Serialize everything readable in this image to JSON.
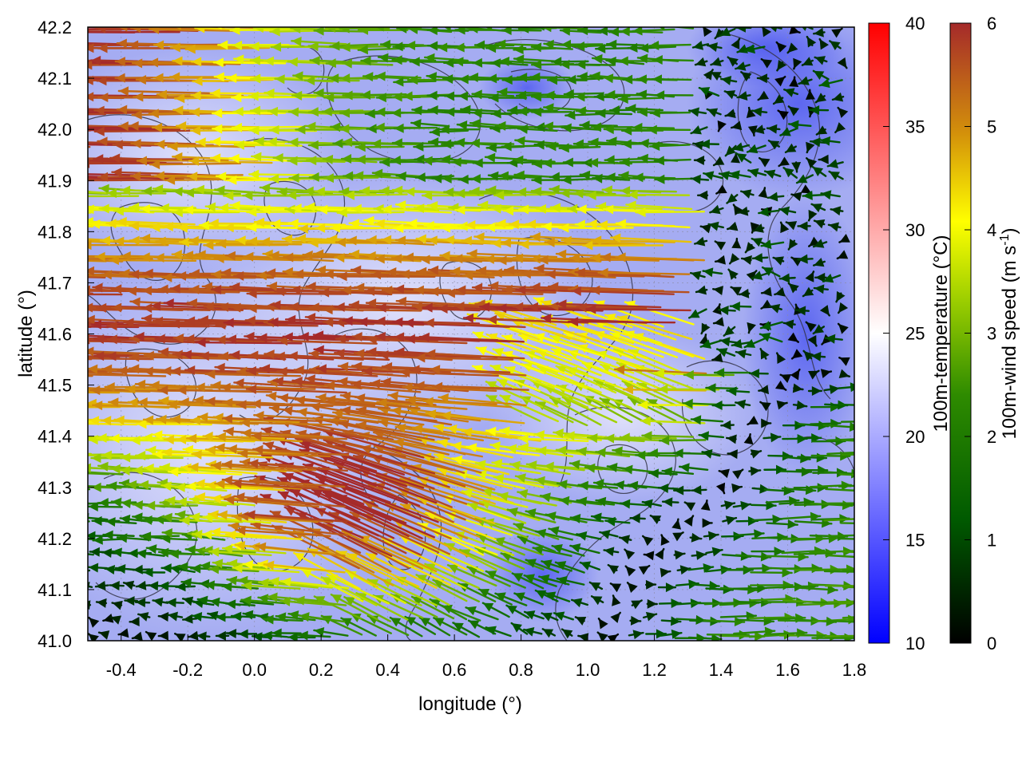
{
  "chart_data": {
    "type": "vector-field",
    "title": "",
    "xlabel": "longitude (°)",
    "ylabel": "latitude (°)",
    "xlim": [
      -0.5,
      1.8
    ],
    "ylim": [
      41.0,
      42.2
    ],
    "x_ticks": [
      "-0.4",
      "-0.2",
      "0.0",
      "0.2",
      "0.4",
      "0.6",
      "0.8",
      "1.0",
      "1.2",
      "1.4",
      "1.6",
      "1.8"
    ],
    "x_tick_values": [
      -0.4,
      -0.2,
      0.0,
      0.2,
      0.4,
      0.6,
      0.8,
      1.0,
      1.2,
      1.4,
      1.6,
      1.8
    ],
    "y_ticks": [
      "41.0",
      "41.1",
      "41.2",
      "41.3",
      "41.4",
      "41.5",
      "41.6",
      "41.7",
      "41.8",
      "41.9",
      "42.0",
      "42.1",
      "42.2"
    ],
    "y_tick_values": [
      41.0,
      41.1,
      41.2,
      41.3,
      41.4,
      41.5,
      41.6,
      41.7,
      41.8,
      41.9,
      42.0,
      42.1,
      42.2
    ],
    "grid": true,
    "background": "100m-temperature field, mostly 15–22 °C (blue to pale lavender)",
    "contours": "terrain elevation isolines (dark grey)",
    "colorbars": [
      {
        "name": "temperature",
        "label": "100m-temperature (°C)",
        "range": [
          10,
          40
        ],
        "ticks": [
          "10",
          "15",
          "20",
          "25",
          "30",
          "35",
          "40"
        ],
        "tick_values": [
          10,
          15,
          20,
          25,
          30,
          35,
          40
        ],
        "colors": [
          "#0000ff",
          "#ffffff",
          "#ff0000"
        ]
      },
      {
        "name": "wind",
        "label_main": "100m-wind speed (m s",
        "label_sup": "-1",
        "label_end": ")",
        "range": [
          0,
          6
        ],
        "ticks": [
          "0",
          "1",
          "2",
          "3",
          "4",
          "5",
          "6"
        ],
        "tick_values": [
          0,
          1,
          2,
          3,
          4,
          5,
          6
        ],
        "colors": [
          "#000000",
          "#006400",
          "#7fc400",
          "#ffff00",
          "#d4920a",
          "#a52a2a"
        ]
      }
    ],
    "wind_regions": [
      {
        "lon": [
          -0.5,
          0.3
        ],
        "lat": [
          41.35,
          42.0
        ],
        "speed": 5.8,
        "direction": "westward"
      },
      {
        "lon": [
          0.3,
          1.3
        ],
        "lat": [
          41.6,
          41.85
        ],
        "speed": 5.6,
        "direction": "westward"
      },
      {
        "lon": [
          0.2,
          0.8
        ],
        "lat": [
          41.0,
          41.4
        ],
        "speed": 5.8,
        "direction": "north-westward"
      },
      {
        "lon": [
          1.3,
          1.8
        ],
        "lat": [
          41.0,
          41.35
        ],
        "speed": 2.5,
        "direction": "eastward"
      },
      {
        "lon": [
          1.4,
          1.8
        ],
        "lat": [
          41.6,
          42.1
        ],
        "speed": 0.8,
        "direction": "variable"
      }
    ]
  }
}
